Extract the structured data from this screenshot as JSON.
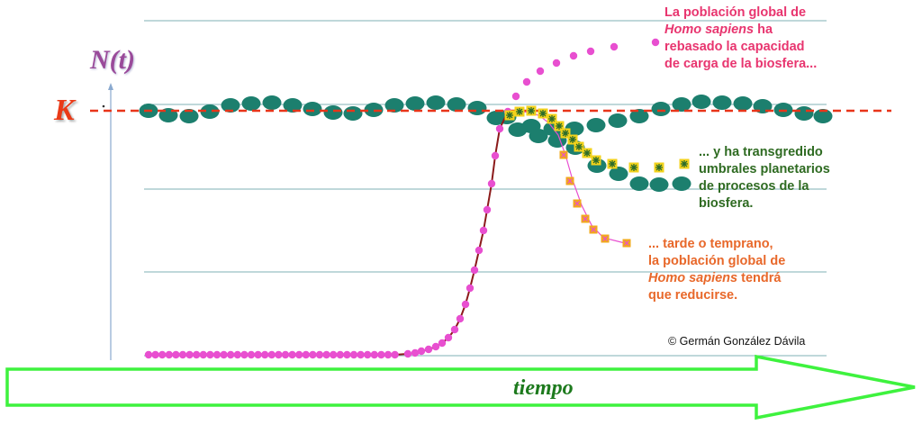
{
  "axis": {
    "y_label": "N(t)",
    "capacity_label": "K",
    "x_label": "tiempo"
  },
  "annotations": {
    "population": {
      "line1": "La población global de",
      "line2_italic": "Homo sapiens",
      "line2_rest": " ha",
      "line3": "rebasado la capacidad",
      "line4": "de carga de la biosfera..."
    },
    "boundaries": {
      "line1": "... y ha transgredido",
      "line2": "umbrales planetarios",
      "line3": "de procesos de la",
      "line4": "biosfera."
    },
    "reduction": {
      "line1": "... tarde o temprano,",
      "line2": "la población global de",
      "line3_italic": "Homo sapiens",
      "line3_rest": " tendrá",
      "line4": "que reducirse."
    }
  },
  "copyright": "© Germán González Dávila",
  "colors": {
    "population_curve": "#8b1a1a",
    "population_points": "#e84fd0",
    "biosphere_points": "#1c7f6e",
    "capacity_line": "#e8351a",
    "threshold_points": "#f2d21b",
    "decline_points": "#f2a81b",
    "time_arrow": "#3ef23e",
    "grid": "#7fb2b6"
  }
}
